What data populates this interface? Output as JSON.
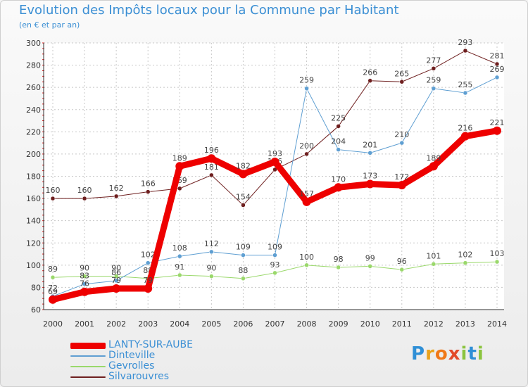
{
  "header": {
    "title": "Evolution des Impôts locaux pour la Commune par Habitant",
    "subtitle": "(en € et par an)"
  },
  "chart_data": {
    "type": "line",
    "title": "Evolution des Impôts locaux pour la Commune par Habitant",
    "subtitle": "(en € et par an)",
    "xlabel": "",
    "ylabel": "",
    "ylim": [
      60,
      300
    ],
    "yticks": [
      60,
      80,
      100,
      120,
      140,
      160,
      180,
      200,
      220,
      240,
      260,
      280,
      300
    ],
    "grid": true,
    "legend_position": "bottom-left",
    "categories": [
      "2000",
      "2001",
      "2002",
      "2003",
      "2004",
      "2005",
      "2006",
      "2007",
      "2008",
      "2009",
      "2010",
      "2011",
      "2012",
      "2013",
      "2014"
    ],
    "series": [
      {
        "name": "Silvarouvres",
        "color": "#6e1f1f",
        "width": 1,
        "values": [
          160,
          160,
          162,
          166,
          169,
          181,
          154,
          186,
          200,
          225,
          266,
          265,
          277,
          293,
          281
        ]
      },
      {
        "name": "Gevrolles",
        "color": "#9ad86b",
        "width": 1,
        "values": [
          89,
          90,
          90,
          88,
          91,
          90,
          88,
          93,
          100,
          98,
          99,
          96,
          101,
          102,
          103
        ]
      },
      {
        "name": "Dinteville",
        "color": "#5f9fd2",
        "width": 1,
        "values": [
          72,
          83,
          86,
          102,
          108,
          112,
          109,
          109,
          259,
          204,
          201,
          210,
          259,
          255,
          269
        ]
      },
      {
        "name": "LANTY-SUR-AUBE",
        "color": "#ee0000",
        "width": 9,
        "values": [
          69,
          76,
          79,
          79,
          189,
          196,
          182,
          193,
          157,
          170,
          173,
          172,
          189,
          216,
          221
        ]
      }
    ]
  },
  "legend": {
    "items": [
      {
        "label": "LANTY-SUR-AUBE",
        "color": "#ee0000"
      },
      {
        "label": "Dinteville",
        "color": "#5f9fd2"
      },
      {
        "label": "Gevrolles",
        "color": "#9ad86b"
      },
      {
        "label": "Silvarouvres",
        "color": "#6e1f1f"
      }
    ]
  },
  "logo": {
    "letters": [
      {
        "ch": "P",
        "color": "#2f8fd6"
      },
      {
        "ch": "r",
        "color": "#e9a21b"
      },
      {
        "ch": "o",
        "color": "#f07818"
      },
      {
        "ch": "x",
        "color": "#e24a2a"
      },
      {
        "ch": "i",
        "color": "#8bc43f"
      },
      {
        "ch": "t",
        "color": "#2f8fd6"
      },
      {
        "ch": "i",
        "color": "#8bc43f"
      }
    ]
  }
}
